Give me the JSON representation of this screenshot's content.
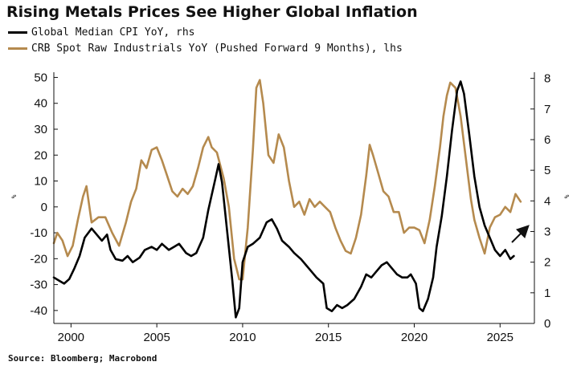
{
  "title": "Rising Metals Prices See Higher Global Inflation",
  "source": "Source: Bloomberg; Macrobond",
  "chart_data": {
    "type": "line",
    "title": "Rising Metals Prices See Higher Global Inflation",
    "legend_placement": "top-left",
    "grid": false,
    "x_range": [
      1999,
      2027
    ],
    "x_ticks": [
      "2000",
      "2005",
      "2010",
      "2015",
      "2020",
      "2025"
    ],
    "y_left": {
      "range": [
        -45,
        52
      ],
      "ticks": [
        "50",
        "40",
        "30",
        "20",
        "10",
        "0",
        "-10",
        "-20",
        "-30",
        "-40"
      ],
      "unit_label": "%"
    },
    "y_right": {
      "range": [
        0,
        8.2
      ],
      "ticks": [
        "8",
        "7",
        "6",
        "5",
        "4",
        "3",
        "2",
        "1",
        "0"
      ],
      "unit_label": "%"
    },
    "series": [
      {
        "name": "Global Median CPI YoY, rhs",
        "axis": "right",
        "color": "#000000",
        "points": [
          [
            1999.0,
            1.5
          ],
          [
            1999.3,
            1.4
          ],
          [
            1999.6,
            1.3
          ],
          [
            1999.9,
            1.45
          ],
          [
            2000.2,
            1.8
          ],
          [
            2000.5,
            2.2
          ],
          [
            2000.8,
            2.8
          ],
          [
            2001.2,
            3.1
          ],
          [
            2001.5,
            2.9
          ],
          [
            2001.8,
            2.7
          ],
          [
            2002.1,
            2.9
          ],
          [
            2002.3,
            2.4
          ],
          [
            2002.6,
            2.1
          ],
          [
            2003.0,
            2.05
          ],
          [
            2003.3,
            2.2
          ],
          [
            2003.6,
            2.0
          ],
          [
            2004.0,
            2.15
          ],
          [
            2004.3,
            2.4
          ],
          [
            2004.7,
            2.5
          ],
          [
            2005.0,
            2.4
          ],
          [
            2005.3,
            2.6
          ],
          [
            2005.7,
            2.4
          ],
          [
            2006.0,
            2.5
          ],
          [
            2006.3,
            2.6
          ],
          [
            2006.7,
            2.3
          ],
          [
            2007.0,
            2.2
          ],
          [
            2007.3,
            2.3
          ],
          [
            2007.7,
            2.8
          ],
          [
            2008.0,
            3.7
          ],
          [
            2008.4,
            4.7
          ],
          [
            2008.6,
            5.2
          ],
          [
            2008.8,
            4.6
          ],
          [
            2009.1,
            3.0
          ],
          [
            2009.4,
            1.4
          ],
          [
            2009.6,
            0.2
          ],
          [
            2009.8,
            0.5
          ],
          [
            2010.0,
            2.0
          ],
          [
            2010.3,
            2.5
          ],
          [
            2010.6,
            2.6
          ],
          [
            2011.0,
            2.8
          ],
          [
            2011.4,
            3.3
          ],
          [
            2011.7,
            3.4
          ],
          [
            2012.0,
            3.1
          ],
          [
            2012.3,
            2.7
          ],
          [
            2012.7,
            2.5
          ],
          [
            2013.0,
            2.3
          ],
          [
            2013.4,
            2.1
          ],
          [
            2013.7,
            1.9
          ],
          [
            2014.0,
            1.7
          ],
          [
            2014.3,
            1.5
          ],
          [
            2014.7,
            1.3
          ],
          [
            2014.9,
            0.5
          ],
          [
            2015.2,
            0.4
          ],
          [
            2015.5,
            0.6
          ],
          [
            2015.8,
            0.5
          ],
          [
            2016.1,
            0.6
          ],
          [
            2016.5,
            0.8
          ],
          [
            2016.9,
            1.2
          ],
          [
            2017.2,
            1.6
          ],
          [
            2017.5,
            1.5
          ],
          [
            2017.8,
            1.7
          ],
          [
            2018.1,
            1.9
          ],
          [
            2018.4,
            2.0
          ],
          [
            2018.7,
            1.8
          ],
          [
            2019.0,
            1.6
          ],
          [
            2019.3,
            1.5
          ],
          [
            2019.6,
            1.5
          ],
          [
            2019.8,
            1.6
          ],
          [
            2020.1,
            1.3
          ],
          [
            2020.3,
            0.5
          ],
          [
            2020.5,
            0.4
          ],
          [
            2020.8,
            0.8
          ],
          [
            2021.1,
            1.5
          ],
          [
            2021.3,
            2.5
          ],
          [
            2021.6,
            3.5
          ],
          [
            2021.9,
            4.8
          ],
          [
            2022.2,
            6.3
          ],
          [
            2022.5,
            7.6
          ],
          [
            2022.7,
            7.9
          ],
          [
            2022.9,
            7.5
          ],
          [
            2023.2,
            6.2
          ],
          [
            2023.5,
            4.8
          ],
          [
            2023.8,
            3.8
          ],
          [
            2024.1,
            3.2
          ],
          [
            2024.4,
            2.8
          ],
          [
            2024.7,
            2.4
          ],
          [
            2025.0,
            2.2
          ],
          [
            2025.3,
            2.4
          ],
          [
            2025.6,
            2.1
          ],
          [
            2025.8,
            2.2
          ]
        ]
      },
      {
        "name": "CRB Spot Raw Industrials YoY (Pushed Forward 9 Months), lhs",
        "axis": "left",
        "color": "#b58a4e",
        "points": [
          [
            1999.0,
            -14
          ],
          [
            1999.2,
            -10
          ],
          [
            1999.5,
            -13
          ],
          [
            1999.8,
            -19
          ],
          [
            2000.1,
            -15
          ],
          [
            2000.4,
            -5
          ],
          [
            2000.7,
            4
          ],
          [
            2000.9,
            8
          ],
          [
            2001.2,
            -6
          ],
          [
            2001.6,
            -4
          ],
          [
            2002.0,
            -4
          ],
          [
            2002.4,
            -10
          ],
          [
            2002.8,
            -15
          ],
          [
            2003.2,
            -6
          ],
          [
            2003.5,
            2
          ],
          [
            2003.8,
            7
          ],
          [
            2004.1,
            18
          ],
          [
            2004.4,
            15
          ],
          [
            2004.7,
            22
          ],
          [
            2005.0,
            23
          ],
          [
            2005.3,
            18
          ],
          [
            2005.6,
            12
          ],
          [
            2005.9,
            6
          ],
          [
            2006.2,
            4
          ],
          [
            2006.5,
            7
          ],
          [
            2006.8,
            5
          ],
          [
            2007.1,
            8
          ],
          [
            2007.4,
            15
          ],
          [
            2007.7,
            23
          ],
          [
            2008.0,
            27
          ],
          [
            2008.2,
            23
          ],
          [
            2008.5,
            21
          ],
          [
            2008.9,
            11
          ],
          [
            2009.2,
            0
          ],
          [
            2009.5,
            -20
          ],
          [
            2009.8,
            -28
          ],
          [
            2010.0,
            -28
          ],
          [
            2010.3,
            -8
          ],
          [
            2010.6,
            22
          ],
          [
            2010.8,
            46
          ],
          [
            2011.0,
            49
          ],
          [
            2011.2,
            40
          ],
          [
            2011.5,
            20
          ],
          [
            2011.8,
            17
          ],
          [
            2012.1,
            28
          ],
          [
            2012.4,
            23
          ],
          [
            2012.7,
            10
          ],
          [
            2013.0,
            0
          ],
          [
            2013.3,
            2
          ],
          [
            2013.6,
            -3
          ],
          [
            2013.9,
            3
          ],
          [
            2014.2,
            0
          ],
          [
            2014.5,
            2
          ],
          [
            2014.8,
            0
          ],
          [
            2015.1,
            -2
          ],
          [
            2015.4,
            -8
          ],
          [
            2015.7,
            -13
          ],
          [
            2016.0,
            -17
          ],
          [
            2016.3,
            -18
          ],
          [
            2016.6,
            -12
          ],
          [
            2016.9,
            -3
          ],
          [
            2017.2,
            12
          ],
          [
            2017.4,
            24
          ],
          [
            2017.6,
            20
          ],
          [
            2017.9,
            13
          ],
          [
            2018.2,
            6
          ],
          [
            2018.5,
            4
          ],
          [
            2018.8,
            -2
          ],
          [
            2019.1,
            -2
          ],
          [
            2019.4,
            -10
          ],
          [
            2019.7,
            -8
          ],
          [
            2020.0,
            -8
          ],
          [
            2020.3,
            -9
          ],
          [
            2020.6,
            -14
          ],
          [
            2020.9,
            -5
          ],
          [
            2021.2,
            8
          ],
          [
            2021.5,
            23
          ],
          [
            2021.7,
            35
          ],
          [
            2021.9,
            43
          ],
          [
            2022.1,
            48
          ],
          [
            2022.4,
            46
          ],
          [
            2022.7,
            35
          ],
          [
            2023.0,
            19
          ],
          [
            2023.3,
            3
          ],
          [
            2023.5,
            -5
          ],
          [
            2023.8,
            -12
          ],
          [
            2024.1,
            -18
          ],
          [
            2024.4,
            -8
          ],
          [
            2024.7,
            -4
          ],
          [
            2025.0,
            -3
          ],
          [
            2025.3,
            0
          ],
          [
            2025.6,
            -2
          ],
          [
            2025.9,
            5
          ],
          [
            2026.2,
            2
          ]
        ]
      }
    ],
    "annotations": [
      {
        "type": "arrow",
        "direction": "up-right",
        "color": "#111111"
      }
    ]
  }
}
